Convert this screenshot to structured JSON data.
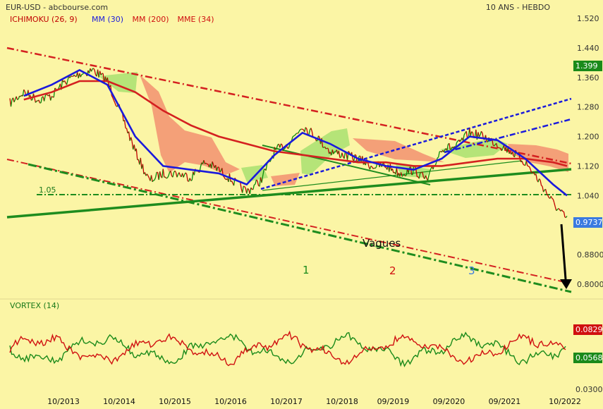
{
  "header": {
    "symbol": "EUR-USD - abcbourse.com",
    "period": "10 ANS - HEBDO",
    "indicators": [
      {
        "label": "ICHIMOKU (26, 9)",
        "color": "#c00000"
      },
      {
        "label": "MM (30)",
        "color": "#1a1adc"
      },
      {
        "label": "MM (200)",
        "color": "#d01010"
      },
      {
        "label": "MME (34)",
        "color": "#d01010"
      }
    ]
  },
  "colors": {
    "background": "#fbf5a5",
    "price_up": "#0a8a0a",
    "price_down": "#c00000",
    "mm30": "#1a1adc",
    "mm200": "#d42020",
    "kumo_bull": "#a8e070",
    "kumo_bear": "#f29070",
    "trend_green": "#1e8c1e",
    "last_price_box": "#3a7ae0",
    "level_box": "#1a8a1a"
  },
  "annotations": {
    "level_label": "1.05",
    "waves_label": "Vagues",
    "wave_numbers": [
      {
        "label": "1",
        "color": "#1a8a1a"
      },
      {
        "label": "2",
        "color": "#d01010"
      },
      {
        "label": "3",
        "color": "#3a7ae0"
      }
    ]
  },
  "price_panel": {
    "last_price": "0.9737",
    "level_marker": "1.399"
  },
  "vortex": {
    "title": "VORTEX (14)",
    "vi_plus": "0.0829",
    "vi_minus": "0.0568",
    "axis_label": "0.0300"
  },
  "chart_data": {
    "type": "line",
    "title": "EUR-USD",
    "y_ticks": [
      "1.520",
      "1.440",
      "1.360",
      "1.280",
      "1.200",
      "1.120",
      "1.040",
      "0.8800",
      "0.8000"
    ],
    "ylim": [
      0.78,
      1.53
    ],
    "x_ticks": [
      "10/2013",
      "10/2014",
      "10/2015",
      "10/2016",
      "10/2017",
      "10/2018",
      "09/2019",
      "09/2020",
      "09/2021",
      "10/2022"
    ],
    "series": [
      {
        "name": "EUR-USD",
        "x": [
          "10/2012",
          "01/2013",
          "04/2013",
          "07/2013",
          "10/2013",
          "01/2014",
          "04/2014",
          "07/2014",
          "10/2014",
          "01/2015",
          "04/2015",
          "07/2015",
          "10/2015",
          "01/2016",
          "04/2016",
          "07/2016",
          "10/2016",
          "01/2017",
          "04/2017",
          "07/2017",
          "10/2017",
          "01/2018",
          "04/2018",
          "07/2018",
          "10/2018",
          "01/2019",
          "04/2019",
          "07/2019",
          "10/2019",
          "01/2020",
          "04/2020",
          "07/2020",
          "10/2020",
          "01/2021",
          "04/2021",
          "07/2021",
          "10/2021",
          "01/2022",
          "04/2022",
          "07/2022",
          "10/2022"
        ],
        "values": [
          1.29,
          1.32,
          1.3,
          1.31,
          1.35,
          1.37,
          1.38,
          1.35,
          1.26,
          1.16,
          1.08,
          1.1,
          1.1,
          1.09,
          1.13,
          1.11,
          1.08,
          1.05,
          1.08,
          1.16,
          1.18,
          1.23,
          1.2,
          1.16,
          1.15,
          1.14,
          1.12,
          1.12,
          1.1,
          1.11,
          1.08,
          1.17,
          1.17,
          1.21,
          1.2,
          1.18,
          1.16,
          1.13,
          1.08,
          1.02,
          0.9737
        ]
      },
      {
        "name": "MM (30)",
        "x": [
          "01/2013",
          "07/2013",
          "01/2014",
          "07/2014",
          "01/2015",
          "07/2015",
          "01/2016",
          "07/2016",
          "01/2017",
          "07/2017",
          "01/2018",
          "07/2018",
          "01/2019",
          "07/2019",
          "01/2020",
          "07/2020",
          "01/2021",
          "07/2021",
          "01/2022",
          "07/2022",
          "10/2022"
        ],
        "values": [
          1.31,
          1.34,
          1.38,
          1.34,
          1.2,
          1.12,
          1.11,
          1.1,
          1.07,
          1.15,
          1.21,
          1.18,
          1.14,
          1.12,
          1.11,
          1.14,
          1.2,
          1.19,
          1.14,
          1.07,
          1.04
        ]
      },
      {
        "name": "MM (200)",
        "x": [
          "01/2013",
          "07/2013",
          "01/2014",
          "07/2014",
          "01/2015",
          "07/2015",
          "01/2016",
          "07/2016",
          "01/2017",
          "07/2017",
          "01/2018",
          "07/2018",
          "01/2019",
          "07/2019",
          "01/2020",
          "07/2020",
          "01/2021",
          "07/2021",
          "01/2022",
          "07/2022",
          "10/2022"
        ],
        "values": [
          1.3,
          1.32,
          1.35,
          1.35,
          1.32,
          1.27,
          1.23,
          1.2,
          1.18,
          1.16,
          1.15,
          1.14,
          1.13,
          1.13,
          1.12,
          1.12,
          1.13,
          1.14,
          1.14,
          1.13,
          1.12
        ]
      }
    ]
  }
}
